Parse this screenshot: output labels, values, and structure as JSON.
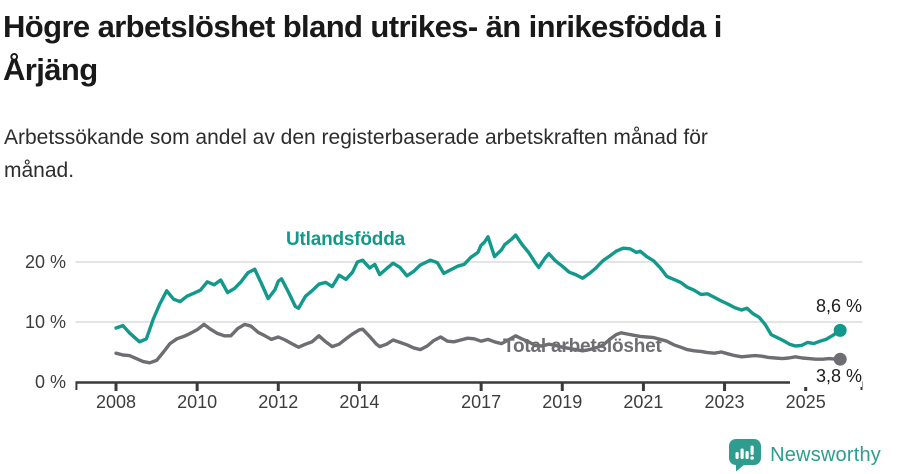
{
  "chart_data": {
    "type": "line",
    "title": "Högre arbetslöshet bland utrikes- än inrikesfödda i Årjäng",
    "title_lines": [
      "Högre arbetslöshet bland utrikes- än inrikesfödda i",
      "Årjäng"
    ],
    "subtitle": "Arbetssökande som andel av den registerbaserade arbetskraften månad för månad.",
    "subtitle_lines": [
      "Arbetssökande som andel av den registerbaserade arbetskraften månad för",
      "månad."
    ],
    "xlim": [
      2007.0,
      2026.4
    ],
    "ylim": [
      0,
      26
    ],
    "grid": "horizontal",
    "legend_position": "inline-labels",
    "x_ticks": [
      "2008",
      "2010",
      "2012",
      "2014",
      "2017",
      "2019",
      "2021",
      "2023",
      "2025"
    ],
    "y_ticks": [
      {
        "value": 0,
        "label": "0 %"
      },
      {
        "value": 10,
        "label": "10 %"
      },
      {
        "value": 20,
        "label": "20 %"
      }
    ],
    "series": [
      {
        "name": "Utlandsfödda",
        "color": "#12998c",
        "end_label": "8,6 %",
        "end_value": 8.6,
        "points": [
          [
            2008.0,
            9.0
          ],
          [
            2008.17,
            9.4
          ],
          [
            2008.33,
            8.2
          ],
          [
            2008.58,
            6.7
          ],
          [
            2008.75,
            7.2
          ],
          [
            2008.92,
            10.5
          ],
          [
            2009.08,
            13.0
          ],
          [
            2009.25,
            15.2
          ],
          [
            2009.42,
            13.8
          ],
          [
            2009.58,
            13.4
          ],
          [
            2009.75,
            14.3
          ],
          [
            2009.92,
            14.8
          ],
          [
            2010.08,
            15.3
          ],
          [
            2010.25,
            16.7
          ],
          [
            2010.42,
            16.2
          ],
          [
            2010.58,
            17.0
          ],
          [
            2010.75,
            14.9
          ],
          [
            2010.92,
            15.6
          ],
          [
            2011.08,
            16.7
          ],
          [
            2011.25,
            18.2
          ],
          [
            2011.42,
            18.8
          ],
          [
            2011.58,
            16.5
          ],
          [
            2011.75,
            13.9
          ],
          [
            2011.92,
            15.4
          ],
          [
            2012.0,
            16.8
          ],
          [
            2012.08,
            17.2
          ],
          [
            2012.25,
            15.0
          ],
          [
            2012.42,
            12.6
          ],
          [
            2012.5,
            12.3
          ],
          [
            2012.67,
            14.3
          ],
          [
            2012.83,
            15.2
          ],
          [
            2013.0,
            16.3
          ],
          [
            2013.17,
            16.6
          ],
          [
            2013.33,
            15.9
          ],
          [
            2013.5,
            17.8
          ],
          [
            2013.67,
            17.1
          ],
          [
            2013.83,
            18.3
          ],
          [
            2013.95,
            20.0
          ],
          [
            2014.08,
            20.3
          ],
          [
            2014.25,
            19.0
          ],
          [
            2014.38,
            19.6
          ],
          [
            2014.5,
            17.9
          ],
          [
            2014.67,
            18.9
          ],
          [
            2014.83,
            19.8
          ],
          [
            2015.0,
            19.1
          ],
          [
            2015.17,
            17.7
          ],
          [
            2015.33,
            18.4
          ],
          [
            2015.5,
            19.5
          ],
          [
            2015.75,
            20.3
          ],
          [
            2015.92,
            19.9
          ],
          [
            2016.08,
            18.1
          ],
          [
            2016.25,
            18.7
          ],
          [
            2016.42,
            19.3
          ],
          [
            2016.58,
            19.6
          ],
          [
            2016.75,
            20.8
          ],
          [
            2016.92,
            21.6
          ],
          [
            2017.0,
            22.8
          ],
          [
            2017.08,
            23.3
          ],
          [
            2017.17,
            24.2
          ],
          [
            2017.33,
            20.9
          ],
          [
            2017.5,
            22.0
          ],
          [
            2017.58,
            22.9
          ],
          [
            2017.75,
            23.8
          ],
          [
            2017.85,
            24.5
          ],
          [
            2018.0,
            23.0
          ],
          [
            2018.17,
            21.6
          ],
          [
            2018.33,
            19.9
          ],
          [
            2018.42,
            19.1
          ],
          [
            2018.58,
            20.7
          ],
          [
            2018.67,
            21.4
          ],
          [
            2018.83,
            20.2
          ],
          [
            2019.0,
            19.3
          ],
          [
            2019.17,
            18.3
          ],
          [
            2019.33,
            17.9
          ],
          [
            2019.5,
            17.3
          ],
          [
            2019.67,
            18.1
          ],
          [
            2019.83,
            19.0
          ],
          [
            2020.0,
            20.2
          ],
          [
            2020.17,
            21.0
          ],
          [
            2020.33,
            21.8
          ],
          [
            2020.5,
            22.3
          ],
          [
            2020.67,
            22.2
          ],
          [
            2020.83,
            21.6
          ],
          [
            2020.92,
            21.8
          ],
          [
            2021.08,
            20.9
          ],
          [
            2021.25,
            20.2
          ],
          [
            2021.42,
            19.0
          ],
          [
            2021.58,
            17.6
          ],
          [
            2021.75,
            17.1
          ],
          [
            2021.92,
            16.6
          ],
          [
            2022.08,
            15.8
          ],
          [
            2022.25,
            15.3
          ],
          [
            2022.42,
            14.6
          ],
          [
            2022.58,
            14.7
          ],
          [
            2022.75,
            14.1
          ],
          [
            2022.92,
            13.5
          ],
          [
            2023.08,
            13.0
          ],
          [
            2023.25,
            12.4
          ],
          [
            2023.42,
            12.0
          ],
          [
            2023.55,
            12.3
          ],
          [
            2023.7,
            11.4
          ],
          [
            2023.85,
            10.8
          ],
          [
            2024.0,
            9.6
          ],
          [
            2024.15,
            7.9
          ],
          [
            2024.3,
            7.4
          ],
          [
            2024.45,
            6.9
          ],
          [
            2024.6,
            6.3
          ],
          [
            2024.75,
            6.0
          ],
          [
            2024.9,
            6.1
          ],
          [
            2025.05,
            6.6
          ],
          [
            2025.2,
            6.4
          ],
          [
            2025.35,
            6.8
          ],
          [
            2025.5,
            7.1
          ],
          [
            2025.65,
            7.7
          ],
          [
            2025.85,
            8.6
          ]
        ]
      },
      {
        "name": "Total arbetslöshet",
        "color": "#6e6e72",
        "end_label": "3,8 %",
        "end_value": 3.8,
        "points": [
          [
            2008.0,
            4.8
          ],
          [
            2008.17,
            4.5
          ],
          [
            2008.33,
            4.4
          ],
          [
            2008.5,
            3.9
          ],
          [
            2008.67,
            3.4
          ],
          [
            2008.83,
            3.2
          ],
          [
            2009.0,
            3.6
          ],
          [
            2009.17,
            5.0
          ],
          [
            2009.33,
            6.4
          ],
          [
            2009.5,
            7.2
          ],
          [
            2009.67,
            7.6
          ],
          [
            2009.83,
            8.1
          ],
          [
            2010.0,
            8.7
          ],
          [
            2010.17,
            9.6
          ],
          [
            2010.33,
            8.8
          ],
          [
            2010.5,
            8.1
          ],
          [
            2010.67,
            7.7
          ],
          [
            2010.83,
            7.7
          ],
          [
            2011.0,
            8.9
          ],
          [
            2011.17,
            9.6
          ],
          [
            2011.33,
            9.3
          ],
          [
            2011.5,
            8.3
          ],
          [
            2011.67,
            7.7
          ],
          [
            2011.83,
            7.1
          ],
          [
            2012.0,
            7.5
          ],
          [
            2012.17,
            7.0
          ],
          [
            2012.33,
            6.4
          ],
          [
            2012.5,
            5.8
          ],
          [
            2012.67,
            6.3
          ],
          [
            2012.83,
            6.7
          ],
          [
            2013.0,
            7.7
          ],
          [
            2013.17,
            6.7
          ],
          [
            2013.33,
            5.9
          ],
          [
            2013.5,
            6.3
          ],
          [
            2013.67,
            7.2
          ],
          [
            2013.83,
            8.0
          ],
          [
            2014.0,
            8.7
          ],
          [
            2014.08,
            8.8
          ],
          [
            2014.25,
            7.6
          ],
          [
            2014.42,
            6.3
          ],
          [
            2014.5,
            5.9
          ],
          [
            2014.67,
            6.3
          ],
          [
            2014.83,
            7.0
          ],
          [
            2015.0,
            6.6
          ],
          [
            2015.17,
            6.2
          ],
          [
            2015.33,
            5.7
          ],
          [
            2015.5,
            5.4
          ],
          [
            2015.67,
            6.0
          ],
          [
            2015.83,
            6.9
          ],
          [
            2016.0,
            7.5
          ],
          [
            2016.17,
            6.8
          ],
          [
            2016.33,
            6.7
          ],
          [
            2016.5,
            7.0
          ],
          [
            2016.67,
            7.3
          ],
          [
            2016.83,
            7.2
          ],
          [
            2017.0,
            6.8
          ],
          [
            2017.17,
            7.1
          ],
          [
            2017.33,
            6.7
          ],
          [
            2017.5,
            6.4
          ],
          [
            2017.67,
            7.0
          ],
          [
            2017.85,
            7.7
          ],
          [
            2018.0,
            7.2
          ],
          [
            2018.17,
            6.7
          ],
          [
            2018.33,
            6.1
          ],
          [
            2018.5,
            6.0
          ],
          [
            2018.67,
            6.3
          ],
          [
            2018.83,
            6.1
          ],
          [
            2019.0,
            5.8
          ],
          [
            2019.17,
            5.6
          ],
          [
            2019.33,
            5.4
          ],
          [
            2019.5,
            5.2
          ],
          [
            2019.67,
            5.4
          ],
          [
            2019.83,
            5.7
          ],
          [
            2020.0,
            6.1
          ],
          [
            2020.17,
            7.1
          ],
          [
            2020.33,
            7.9
          ],
          [
            2020.45,
            8.2
          ],
          [
            2020.6,
            8.0
          ],
          [
            2020.75,
            7.8
          ],
          [
            2020.92,
            7.6
          ],
          [
            2021.08,
            7.5
          ],
          [
            2021.25,
            7.4
          ],
          [
            2021.42,
            7.1
          ],
          [
            2021.58,
            6.8
          ],
          [
            2021.75,
            6.2
          ],
          [
            2021.92,
            5.8
          ],
          [
            2022.08,
            5.4
          ],
          [
            2022.25,
            5.2
          ],
          [
            2022.42,
            5.1
          ],
          [
            2022.58,
            4.9
          ],
          [
            2022.75,
            4.8
          ],
          [
            2022.92,
            5.0
          ],
          [
            2023.08,
            4.7
          ],
          [
            2023.25,
            4.4
          ],
          [
            2023.42,
            4.2
          ],
          [
            2023.58,
            4.3
          ],
          [
            2023.75,
            4.4
          ],
          [
            2023.92,
            4.3
          ],
          [
            2024.08,
            4.1
          ],
          [
            2024.25,
            4.0
          ],
          [
            2024.42,
            3.9
          ],
          [
            2024.58,
            4.0
          ],
          [
            2024.75,
            4.2
          ],
          [
            2024.92,
            4.0
          ],
          [
            2025.08,
            3.9
          ],
          [
            2025.25,
            3.8
          ],
          [
            2025.42,
            3.8
          ],
          [
            2025.58,
            3.9
          ],
          [
            2025.75,
            3.8
          ],
          [
            2025.85,
            3.8
          ]
        ]
      }
    ]
  },
  "branding": {
    "wordmark": "Newsworthy",
    "color": "#2e9c8e"
  },
  "axis_colors": {
    "grid": "#dcdcdc",
    "axis": "#3a3a3a",
    "tick_text": "#3d3d3d"
  }
}
